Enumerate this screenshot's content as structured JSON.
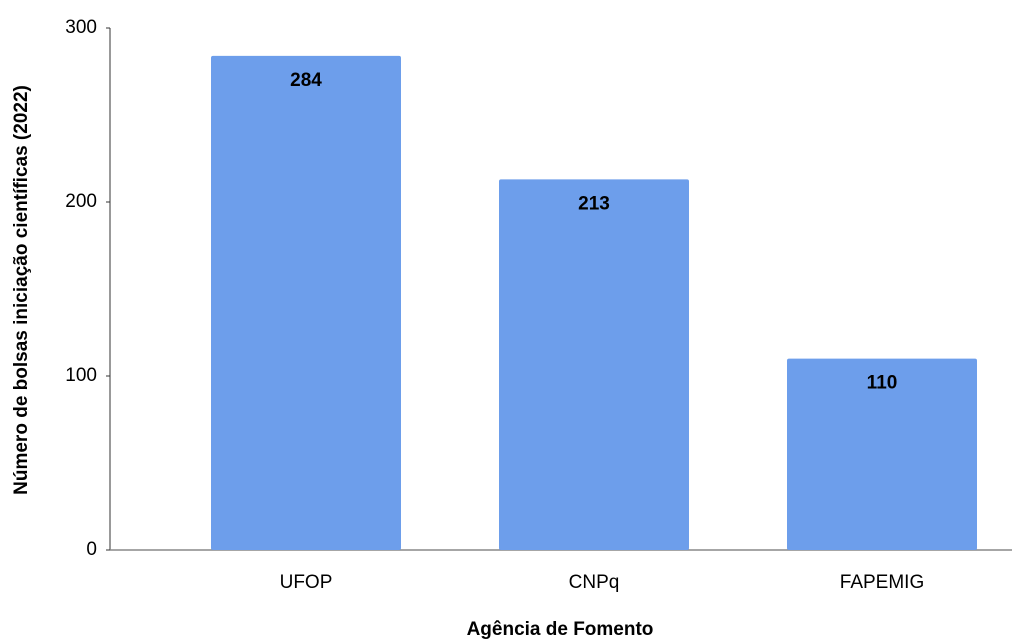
{
  "chart_data": {
    "type": "bar",
    "categories": [
      "UFOP",
      "CNPq",
      "FAPEMIG"
    ],
    "values": [
      284,
      213,
      110
    ],
    "color": "#6d9eeb",
    "xlabel": "Agência de Fomento",
    "ylabel": "Número de bolsas iniciação científicas (2022)",
    "ylim": [
      0,
      300
    ],
    "yticks": [
      0,
      100,
      200,
      300
    ],
    "grid": false
  }
}
